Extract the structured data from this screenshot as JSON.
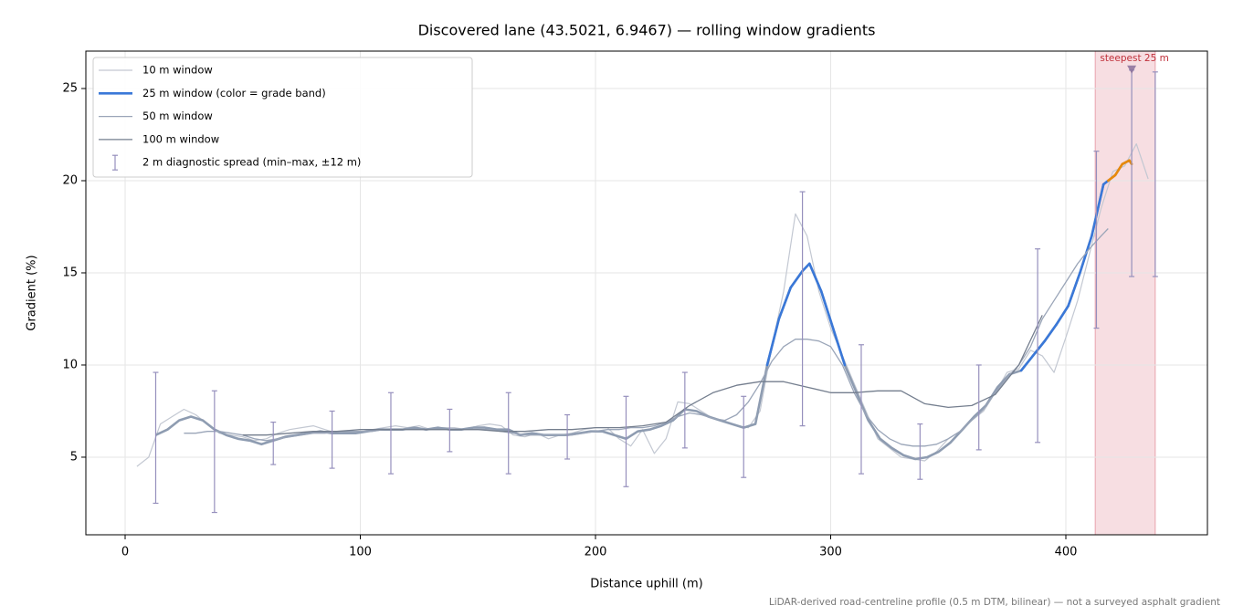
{
  "chart_data": {
    "type": "line",
    "title": "Discovered lane (43.5021, 6.9467) — rolling window gradients",
    "x_label": "Distance uphill (m)",
    "y_label": "Gradient (%)",
    "footnote": "LiDAR-derived road-centreline profile (0.5 m DTM, bilinear) — not a surveyed asphalt gradient",
    "xlim": [
      -16.7,
      460.2
    ],
    "ylim": [
      0.79,
      27.03
    ],
    "xticks": [
      0,
      100,
      200,
      300,
      400
    ],
    "yticks": [
      5,
      10,
      15,
      20,
      25
    ],
    "grid": true,
    "legend": "upper left",
    "highlight": {
      "x": [
        412.5,
        438
      ],
      "color": "#f2cdd2"
    },
    "annotation": {
      "text": "steepest 25 m",
      "x": 428,
      "y": 26,
      "color": "#c0303a",
      "marker_color": "#8a6e9a"
    },
    "series": [
      {
        "name": "10 m window",
        "color": "#c3c8d2",
        "width": 1.2,
        "x": [
          5,
          10,
          15,
          20,
          25,
          30,
          35,
          40,
          45,
          50,
          55,
          60,
          65,
          70,
          75,
          80,
          85,
          90,
          95,
          100,
          105,
          110,
          115,
          120,
          125,
          130,
          135,
          140,
          145,
          150,
          155,
          160,
          165,
          170,
          175,
          180,
          185,
          190,
          195,
          200,
          205,
          210,
          215,
          220,
          225,
          230,
          235,
          240,
          245,
          250,
          255,
          260,
          265,
          270,
          275,
          280,
          285,
          290,
          295,
          300,
          305,
          310,
          315,
          320,
          325,
          330,
          335,
          340,
          345,
          350,
          355,
          360,
          365,
          370,
          375,
          380,
          385,
          390,
          395,
          400,
          405,
          410,
          415,
          420,
          425,
          430,
          435
        ],
        "values": [
          4.5,
          5.0,
          6.8,
          7.2,
          7.6,
          7.3,
          6.8,
          6.3,
          6.2,
          6.1,
          5.9,
          6.0,
          6.3,
          6.5,
          6.6,
          6.7,
          6.5,
          6.3,
          6.4,
          6.3,
          6.5,
          6.6,
          6.7,
          6.6,
          6.7,
          6.5,
          6.6,
          6.6,
          6.5,
          6.7,
          6.8,
          6.7,
          6.2,
          6.1,
          6.3,
          6.0,
          6.2,
          6.3,
          6.5,
          6.6,
          6.6,
          6.0,
          5.6,
          6.5,
          5.2,
          6.0,
          8.0,
          7.9,
          7.5,
          7.1,
          6.9,
          6.7,
          6.6,
          7.5,
          11.0,
          14.0,
          18.2,
          17.0,
          14.0,
          12.0,
          10.5,
          9.0,
          7.5,
          6.0,
          5.5,
          5.0,
          4.9,
          4.8,
          5.3,
          6.0,
          6.4,
          7.0,
          7.5,
          8.5,
          9.6,
          9.8,
          10.8,
          10.5,
          9.6,
          11.5,
          13.5,
          16.0,
          18.5,
          20.5,
          20.8,
          22.0,
          20.1
        ]
      },
      {
        "name": "25 m window (color = grade band)",
        "color": "#3a78d8",
        "width": 2.6,
        "base_color": "#8e9cb1",
        "grade_bands": [
          {
            "min": 10,
            "color": "#3a78d8"
          },
          {
            "min": 20,
            "color": "#e8890c"
          }
        ],
        "x": [
          13,
          18,
          23,
          28,
          33,
          38,
          43,
          48,
          53,
          58,
          63,
          68,
          73,
          78,
          83,
          88,
          93,
          98,
          103,
          108,
          113,
          118,
          123,
          128,
          133,
          138,
          143,
          148,
          153,
          158,
          163,
          168,
          173,
          178,
          183,
          188,
          193,
          198,
          203,
          208,
          213,
          218,
          223,
          228,
          233,
          238,
          243,
          248,
          253,
          258,
          263,
          268,
          273,
          278,
          283,
          288,
          291,
          296,
          301,
          306,
          311,
          316,
          321,
          326,
          331,
          336,
          341,
          346,
          351,
          356,
          361,
          366,
          371,
          376,
          381,
          386,
          391,
          396,
          401,
          406,
          411,
          416,
          418,
          421,
          424,
          427,
          428
        ],
        "values": [
          6.2,
          6.5,
          7.0,
          7.2,
          7.0,
          6.5,
          6.2,
          6.0,
          5.9,
          5.7,
          5.9,
          6.1,
          6.2,
          6.3,
          6.4,
          6.3,
          6.3,
          6.3,
          6.4,
          6.5,
          6.5,
          6.5,
          6.6,
          6.5,
          6.6,
          6.5,
          6.5,
          6.6,
          6.6,
          6.5,
          6.5,
          6.2,
          6.3,
          6.2,
          6.2,
          6.2,
          6.3,
          6.4,
          6.4,
          6.2,
          6.0,
          6.4,
          6.5,
          6.7,
          7.0,
          7.6,
          7.5,
          7.2,
          7.0,
          6.8,
          6.6,
          6.8,
          10.0,
          12.5,
          14.2,
          15.1,
          15.5,
          14.0,
          12.0,
          10.0,
          8.5,
          7.0,
          6.0,
          5.5,
          5.1,
          4.9,
          5.0,
          5.3,
          5.8,
          6.5,
          7.2,
          7.8,
          8.8,
          9.5,
          9.7,
          10.5,
          11.3,
          12.2,
          13.2,
          15.0,
          17.0,
          19.8,
          20.0,
          20.3,
          20.9,
          21.1,
          20.9
        ]
      },
      {
        "name": "50 m window",
        "color": "#9aa5b8",
        "width": 1.3,
        "x": [
          25,
          30,
          35,
          40,
          45,
          50,
          55,
          60,
          65,
          70,
          75,
          80,
          85,
          90,
          95,
          100,
          105,
          110,
          115,
          120,
          125,
          130,
          135,
          140,
          145,
          150,
          155,
          160,
          165,
          170,
          175,
          180,
          185,
          190,
          195,
          200,
          205,
          210,
          215,
          220,
          225,
          230,
          235,
          240,
          245,
          250,
          255,
          260,
          265,
          270,
          275,
          280,
          285,
          290,
          295,
          300,
          305,
          310,
          315,
          320,
          325,
          330,
          335,
          340,
          345,
          350,
          355,
          360,
          365,
          370,
          375,
          380,
          385,
          390,
          395,
          400,
          405,
          410,
          415,
          418
        ],
        "values": [
          6.3,
          6.3,
          6.4,
          6.4,
          6.3,
          6.2,
          6.0,
          5.9,
          6.0,
          6.1,
          6.2,
          6.3,
          6.3,
          6.4,
          6.4,
          6.4,
          6.4,
          6.5,
          6.5,
          6.5,
          6.5,
          6.5,
          6.5,
          6.5,
          6.5,
          6.5,
          6.5,
          6.4,
          6.3,
          6.2,
          6.2,
          6.2,
          6.2,
          6.2,
          6.3,
          6.4,
          6.5,
          6.5,
          6.6,
          6.6,
          6.7,
          6.9,
          7.2,
          7.4,
          7.3,
          7.1,
          7.0,
          7.3,
          8.0,
          9.0,
          10.2,
          11.0,
          11.4,
          11.4,
          11.3,
          11.0,
          10.0,
          8.5,
          7.3,
          6.5,
          6.0,
          5.7,
          5.6,
          5.6,
          5.7,
          6.0,
          6.4,
          7.0,
          7.6,
          8.5,
          9.3,
          10.0,
          11.0,
          12.5,
          13.5,
          14.5,
          15.5,
          16.3,
          17.0,
          17.4
        ]
      },
      {
        "name": "100 m window",
        "color": "#747e8e",
        "width": 1.3,
        "x": [
          50,
          60,
          70,
          80,
          90,
          100,
          110,
          120,
          130,
          140,
          150,
          160,
          170,
          180,
          190,
          200,
          210,
          220,
          230,
          240,
          250,
          260,
          270,
          280,
          290,
          300,
          310,
          320,
          330,
          340,
          350,
          360,
          370,
          380,
          390
        ],
        "values": [
          6.2,
          6.2,
          6.3,
          6.4,
          6.4,
          6.5,
          6.5,
          6.5,
          6.5,
          6.5,
          6.5,
          6.4,
          6.4,
          6.5,
          6.5,
          6.6,
          6.6,
          6.7,
          6.9,
          7.8,
          8.5,
          8.9,
          9.1,
          9.1,
          8.8,
          8.5,
          8.5,
          8.6,
          8.6,
          7.9,
          7.7,
          7.8,
          8.4,
          10.0,
          12.7
        ]
      }
    ],
    "spread": {
      "name": "2 m diagnostic spread (min–max, ±12 m)",
      "color": "#9690bd",
      "x": [
        13,
        38,
        63,
        88,
        113,
        138,
        163,
        188,
        213,
        238,
        263,
        288,
        313,
        338,
        363,
        388,
        413,
        428,
        438
      ],
      "low": [
        2.5,
        2.0,
        4.6,
        4.4,
        4.1,
        5.3,
        4.1,
        4.9,
        3.4,
        5.5,
        3.9,
        6.7,
        4.1,
        3.8,
        5.4,
        5.8,
        12.0,
        14.8,
        14.8
      ],
      "high": [
        9.6,
        8.6,
        6.9,
        7.5,
        8.5,
        7.6,
        8.5,
        7.3,
        8.3,
        9.6,
        8.3,
        19.4,
        11.1,
        6.8,
        10.0,
        16.3,
        21.6,
        26.0,
        25.9
      ]
    }
  }
}
